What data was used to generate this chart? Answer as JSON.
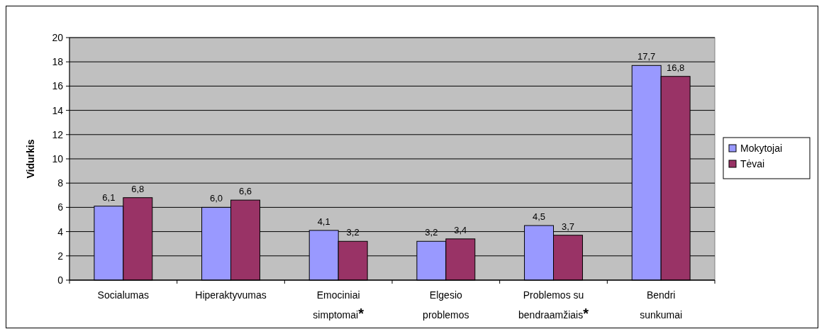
{
  "chart_data": {
    "type": "bar",
    "ylabel": "Vidurkis",
    "categories": [
      "Socialumas",
      "Hiperaktyvumas",
      "Emociniai simptomai*",
      "Elgesio problemos",
      "Problemos su bendraamžiais*",
      "Bendri sunkumai"
    ],
    "series": [
      {
        "name": "Mokytojai",
        "color": "#9999ff",
        "values": [
          6.1,
          6.0,
          4.1,
          3.2,
          4.5,
          17.7
        ],
        "value_labels": [
          "6,1",
          "6,0",
          "4,1",
          "3,2",
          "4,5",
          "17,7"
        ]
      },
      {
        "name": "Tėvai",
        "color": "#993366",
        "values": [
          6.8,
          6.6,
          3.2,
          3.4,
          3.7,
          16.8
        ],
        "value_labels": [
          "6,8",
          "6,6",
          "3,2",
          "3,4",
          "3,7",
          "16,8"
        ]
      }
    ],
    "ylim": [
      0,
      20
    ],
    "yticks": [
      0,
      2,
      4,
      6,
      8,
      10,
      12,
      14,
      16,
      18,
      20
    ],
    "grid": "y",
    "legend": "right"
  }
}
